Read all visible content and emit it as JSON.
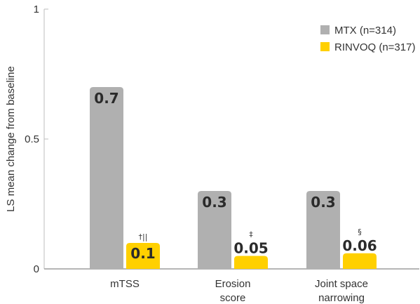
{
  "chart_data": {
    "type": "bar",
    "ylabel": "LS mean change from baseline",
    "ylim": [
      0,
      1
    ],
    "yticks": [
      {
        "value": 0,
        "label": "0"
      },
      {
        "value": 0.5,
        "label": "0.5"
      },
      {
        "value": 1,
        "label": "1"
      }
    ],
    "categories": [
      [
        "mTSS"
      ],
      [
        "Erosion",
        "score"
      ],
      [
        "Joint space",
        "narrowing"
      ]
    ],
    "series": [
      {
        "name": "MTX (n=314)",
        "color": "#b0b0b0",
        "values": [
          0.7,
          0.3,
          0.3
        ],
        "labels": [
          "0.7",
          "0.3",
          "0.3"
        ],
        "footnotes": [
          "",
          "",
          ""
        ]
      },
      {
        "name": "RINVOQ (n=317)",
        "color": "#ffd000",
        "values": [
          0.1,
          0.05,
          0.06
        ],
        "labels": [
          "0.1",
          "0.05",
          "0.06"
        ],
        "footnotes": [
          "†||",
          "‡",
          "§"
        ]
      }
    ],
    "legend_position": "top-right",
    "grid": false
  }
}
